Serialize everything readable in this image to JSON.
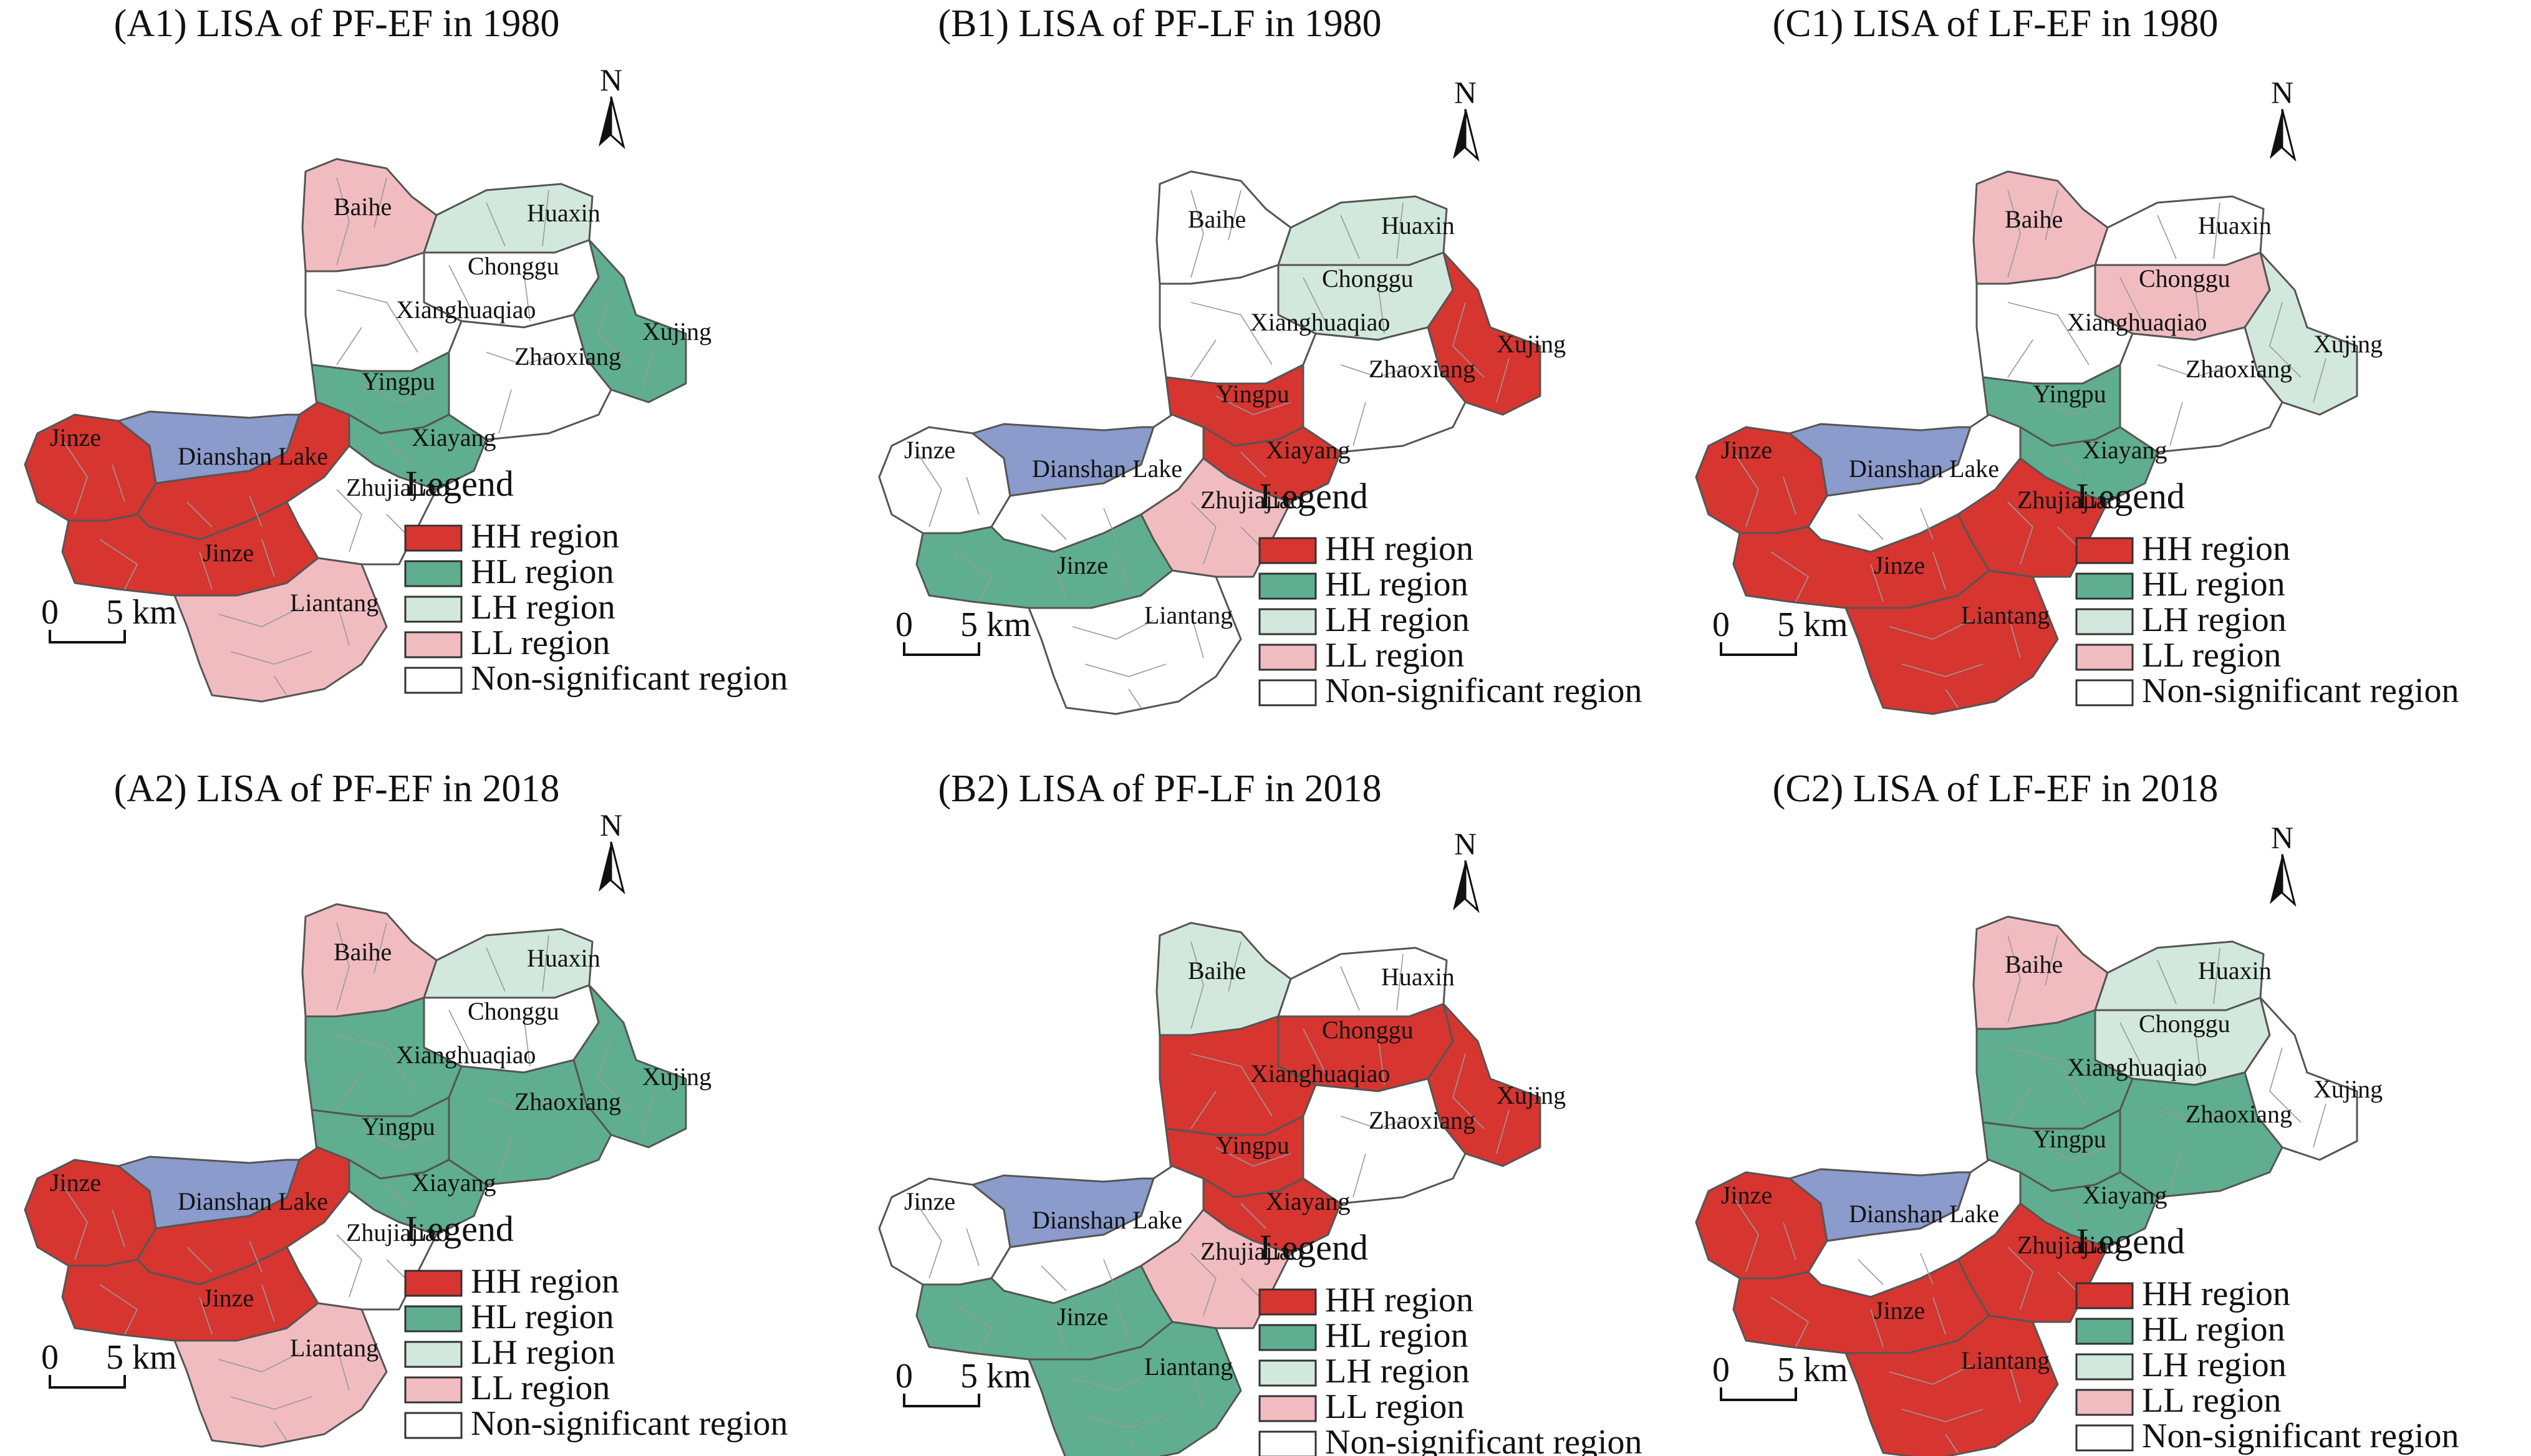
{
  "colors": {
    "HH": "#d73530",
    "HL": "#5fae8f",
    "LH": "#d2e8dd",
    "LL": "#f1bcc0",
    "NS": "#ffffff",
    "lake": "#8a9bcc",
    "border": "#555555"
  },
  "panels": [
    {
      "id": "A1",
      "title": "(A1) LISA of PF-EF in 1980",
      "classes": {
        "Baihe": "LL",
        "Huaxin": "LH",
        "Xujing": "HL",
        "Yingpu": "HL",
        "Xiayang": "HL",
        "Jinze": "HH",
        "Jinze2": "HH",
        "Xiangbei": "HH",
        "Liantang": "LL"
      }
    },
    {
      "id": "B1",
      "title": "(B1) LISA of PF-LF in 1980",
      "classes": {
        "Chonggu": "LH",
        "Huaxin": "LH",
        "Xujing": "HH",
        "Yingpu": "HH",
        "Xiayang": "HH",
        "Zhujiajiao": "LL",
        "Jinze2": "HL"
      }
    },
    {
      "id": "C1",
      "title": "(C1) LISA of LF-EF in 1980",
      "classes": {
        "Baihe": "LL",
        "Chonggu": "LL",
        "Xujing": "LH",
        "Yingpu": "HL",
        "Xiayang": "HL",
        "Jinze": "HH",
        "Jinze2": "HH",
        "Zhujiajiao": "HH",
        "Liantang": "HH"
      }
    },
    {
      "id": "A2",
      "title": "(A2) LISA of PF-EF in 2018",
      "classes": {
        "Baihe": "LL",
        "Huaxin": "LH",
        "Xianghuaqiao": "HL",
        "Yingpu": "HL",
        "Xiayang": "HL",
        "Xujing": "HL",
        "Zhaoxiang": "HL",
        "Jinze": "HH",
        "Jinze2": "HH",
        "Xiangbei": "HH",
        "Liantang": "LL"
      }
    },
    {
      "id": "B2",
      "title": "(B2) LISA of PF-LF in 2018",
      "classes": {
        "Baihe": "LH",
        "Chonggu": "HH",
        "Xujing": "HH",
        "Xianghuaqiao": "HH",
        "Yingpu": "HH",
        "Xiayang": "HH",
        "Zhujiajiao": "LL",
        "Jinze2": "HL",
        "Liantang": "HL"
      }
    },
    {
      "id": "C2",
      "title": "(C2) LISA of LF-EF in 2018",
      "classes": {
        "Baihe": "LL",
        "Huaxin": "LH",
        "Chonggu": "LH",
        "Xianghuaqiao": "HL",
        "Yingpu": "HL",
        "Xiayang": "HL",
        "Zhaoxiang": "HL",
        "Jinze": "HH",
        "Jinze2": "HH",
        "Zhujiajiao": "HH",
        "Liantang": "HH"
      }
    }
  ],
  "place_labels": [
    "Baihe",
    "Huaxin",
    "Chonggu",
    "Xianghuaqiao",
    "Xujing",
    "Zhaoxiang",
    "Yingpu",
    "Xiayang",
    "Jinze",
    "Dianshan Lake",
    "Zhujiajiao",
    "Jinze",
    "Liantang"
  ],
  "legend": {
    "title": "Legend",
    "items": [
      {
        "key": "HH",
        "label": "HH region"
      },
      {
        "key": "HL",
        "label": "HL region"
      },
      {
        "key": "LH",
        "label": "LH region"
      },
      {
        "key": "LL",
        "label": "LL region"
      },
      {
        "key": "NS",
        "label": "Non-significant region"
      }
    ]
  },
  "scale": {
    "start": "0",
    "end": "5 km"
  },
  "north": "N"
}
